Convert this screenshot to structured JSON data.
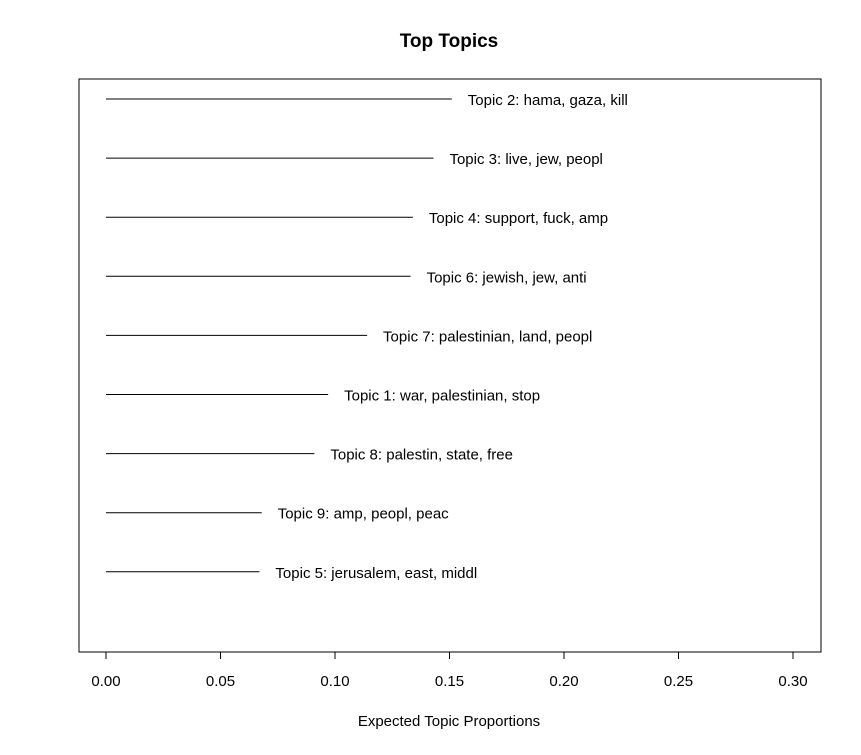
{
  "chart_data": {
    "type": "bar",
    "title": "Top Topics",
    "xlabel": "Expected Topic Proportions",
    "ylabel": "",
    "xlim": [
      0,
      0.31
    ],
    "x_ticks": [
      0.0,
      0.05,
      0.1,
      0.15,
      0.2,
      0.25,
      0.3
    ],
    "x_tick_labels": [
      "0.00",
      "0.05",
      "0.10",
      "0.15",
      "0.20",
      "0.25",
      "0.30"
    ],
    "grid": false,
    "orientation": "horizontal",
    "line_color": "#000000",
    "categories": [
      "Topic 2: hama, gaza, kill",
      "Topic 3: live, jew, peopl",
      "Topic 4: support, fuck, amp",
      "Topic 6: jewish, jew, anti",
      "Topic 7: palestinian, land, peopl",
      "Topic 1: war, palestinian, stop",
      "Topic 8: palestin, state, free",
      "Topic 9: amp, peopl, peac",
      "Topic 5: jerusalem, east, middl"
    ],
    "values": [
      0.151,
      0.143,
      0.134,
      0.133,
      0.114,
      0.097,
      0.091,
      0.068,
      0.067
    ]
  }
}
